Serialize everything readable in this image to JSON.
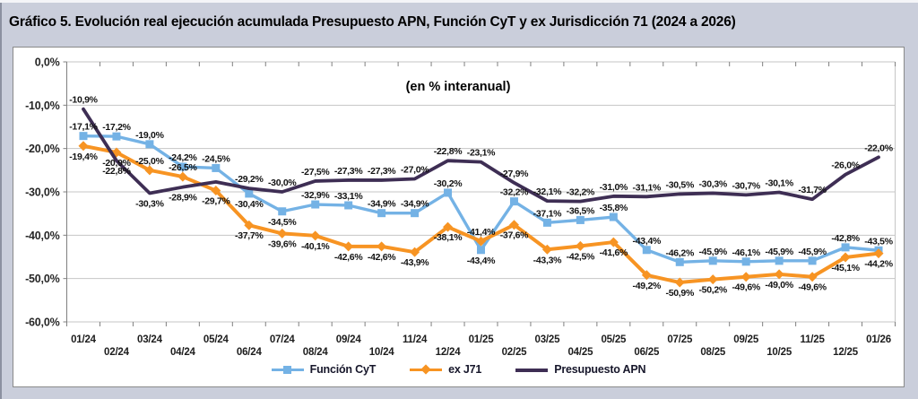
{
  "chart_data": {
    "type": "line",
    "title": "Gráfico 5. Evolución real ejecución acumulada Presupuesto APN, Función CyT y ex Jurisdicción 71 (2024 a 2026)",
    "annotation": "(en % interanual)",
    "legend_position": "bottom",
    "grid": "horizontal",
    "categories": [
      "01/24",
      "02/24",
      "03/24",
      "04/24",
      "05/24",
      "06/24",
      "07/24",
      "08/24",
      "09/24",
      "10/24",
      "11/24",
      "12/24",
      "01/25",
      "02/25",
      "03/25",
      "04/25",
      "05/25",
      "06/25",
      "07/25",
      "08/25",
      "09/25",
      "10/25",
      "11/25",
      "12/25",
      "01/26"
    ],
    "y_axis": {
      "min": -60,
      "max": 0,
      "step": 10,
      "tick_labels": [
        "0,0%",
        "-10,0%",
        "-20,0%",
        "-30,0%",
        "-40,0%",
        "-50,0%",
        "-60,0%"
      ]
    },
    "series": [
      {
        "name": "Función CyT",
        "color": "#74B2E5",
        "marker": "square",
        "values": [
          -17.1,
          -17.2,
          -19.0,
          -24.2,
          -24.5,
          -30.4,
          -34.5,
          -32.9,
          -33.1,
          -34.9,
          -34.9,
          -30.2,
          -43.4,
          -32.2,
          -37.1,
          -36.5,
          -35.8,
          -43.4,
          -46.2,
          -45.9,
          -46.1,
          -45.9,
          -45.9,
          -42.8,
          -43.5
        ],
        "labels": [
          "-17,1%",
          "-17,2%",
          "-19,0%",
          "-24,2%",
          "-24,5%",
          "-30,4%",
          "-34,5%",
          "-32,9%",
          "-33,1%",
          "-34,9%",
          "-34,9%",
          "-30,2%",
          "-43,4%",
          "-32,2%",
          "-37,1%",
          "-36,5%",
          "-35,8%",
          "-43,4%",
          "-46,2%",
          "-45,9%",
          "-46,1%",
          "-45,9%",
          "-45,9%",
          "-42,8%",
          "-43,5%"
        ],
        "label_pos": [
          "a",
          "a",
          "a",
          "a",
          "a",
          "b",
          "b",
          "a",
          "a",
          "a",
          "a",
          "a",
          "b",
          "a",
          "a",
          "a",
          "a",
          "a",
          "a",
          "a",
          "a",
          "a",
          "a",
          "a",
          "a"
        ]
      },
      {
        "name": "ex J71",
        "color": "#F79423",
        "marker": "diamond",
        "values": [
          -19.4,
          -20.9,
          -25.0,
          -26.5,
          -29.7,
          -37.7,
          -39.6,
          -40.1,
          -42.6,
          -42.6,
          -43.9,
          -38.1,
          -41.4,
          -37.6,
          -43.3,
          -42.5,
          -41.6,
          -49.2,
          -50.9,
          -50.2,
          -49.6,
          -49.0,
          -49.6,
          -45.1,
          -44.2
        ],
        "labels": [
          "-19,4%",
          "-20,9%",
          "-25,0%",
          "-26,5%",
          "-29,7%",
          "-37,7%",
          "-39,6%",
          "-40,1%",
          "-42,6%",
          "-42,6%",
          "-43,9%",
          "-38,1%",
          "-41,4%",
          "-37,6%",
          "-43,3%",
          "-42,5%",
          "-41,6%",
          "-49,2%",
          "-50,9%",
          "-50,2%",
          "-49,6%",
          "-49,0%",
          "-49,6%",
          "-45,1%",
          "-44,2%"
        ],
        "label_pos": [
          "b",
          "b",
          "a",
          "a",
          "b",
          "b",
          "b",
          "b",
          "b",
          "b",
          "b",
          "b",
          "a",
          "b",
          "b",
          "b",
          "b",
          "b",
          "b",
          "b",
          "b",
          "b",
          "b",
          "b",
          "b"
        ]
      },
      {
        "name": "Presupuesto APN",
        "color": "#3E2E54",
        "marker": "none",
        "values": [
          -10.9,
          -22.8,
          -30.3,
          -28.9,
          -27.7,
          -29.2,
          -30.0,
          -27.5,
          -27.3,
          -27.3,
          -27.0,
          -22.8,
          -23.1,
          -27.9,
          -32.1,
          -32.2,
          -31.0,
          -31.1,
          -30.5,
          -30.3,
          -30.7,
          -30.1,
          -31.7,
          -26.0,
          -22.0
        ],
        "labels": [
          "-10,9%",
          "-22,8%",
          "-30,3%",
          "-28,9%",
          "",
          "-29,2%",
          "-30,0%",
          "-27,5%",
          "-27,3%",
          "-27,3%",
          "-27,0%",
          "-22,8%",
          "-23,1%",
          "-27,9%",
          "-32,1%",
          "-32,2%",
          "-31,0%",
          "-31,1%",
          "-30,5%",
          "-30,3%",
          "-30,7%",
          "-30,1%",
          "-31,7%",
          "-26,0%",
          "-22,0%"
        ],
        "label_pos": [
          "a",
          "b",
          "b",
          "b",
          "",
          "a",
          "a",
          "a",
          "a",
          "a",
          "a",
          "a",
          "a",
          "a",
          "a",
          "a",
          "a",
          "a",
          "a",
          "a",
          "a",
          "a",
          "a",
          "a",
          "a"
        ]
      }
    ],
    "colors": {
      "background": "#CACEDB",
      "plot_background": "#FFFFFF",
      "gridline": "#C6C6C6",
      "axis": "#7F7F7F",
      "label_text": "#121212"
    }
  }
}
